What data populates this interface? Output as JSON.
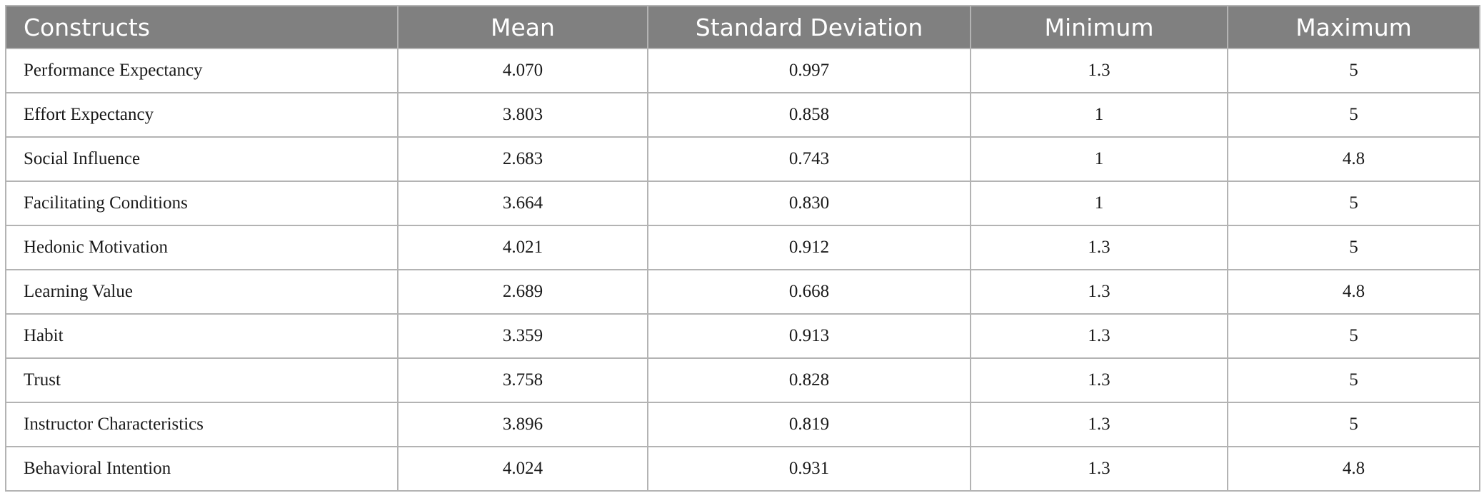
{
  "table": {
    "header": [
      "Constructs",
      "Mean",
      "Standard Deviation",
      "Minimum",
      "Maximum"
    ],
    "rows": [
      [
        "Performance Expectancy",
        "4.070",
        "0.997",
        "1.3",
        "5"
      ],
      [
        "Effort Expectancy",
        "3.803",
        "0.858",
        "1",
        "5"
      ],
      [
        "Social Influence",
        "2.683",
        "0.743",
        "1",
        "4.8"
      ],
      [
        "Facilitating Conditions",
        "3.664",
        "0.830",
        "1",
        "5"
      ],
      [
        "Hedonic Motivation",
        "4.021",
        "0.912",
        "1.3",
        "5"
      ],
      [
        "Learning Value",
        "2.689",
        "0.668",
        "1.3",
        "4.8"
      ],
      [
        "Habit",
        "3.359",
        "0.913",
        "1.3",
        "5"
      ],
      [
        "Trust",
        "3.758",
        "0.828",
        "1.3",
        "5"
      ],
      [
        "Instructor Characteristics",
        "3.896",
        "0.819",
        "1.3",
        "5"
      ],
      [
        "Behavioral Intention",
        "4.024",
        "0.931",
        "1.3",
        "4.8"
      ]
    ]
  }
}
